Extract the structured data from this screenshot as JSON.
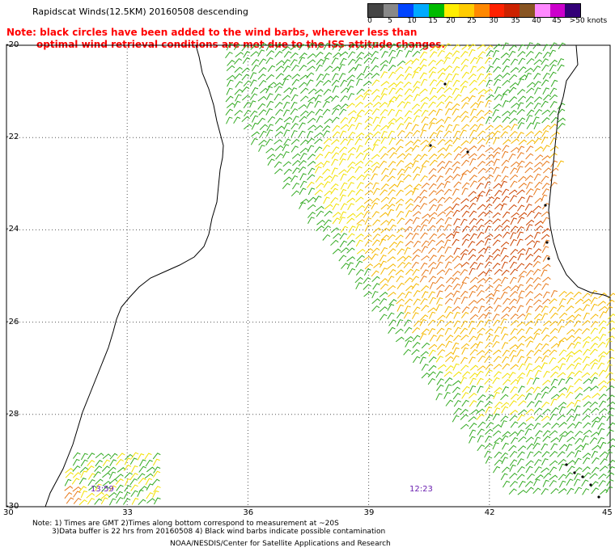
{
  "title": "Rapidscat Winds(12.5KM) 20160508 descending",
  "note": {
    "line1": "Note: black circles have been added to the wind barbs, wherever less than",
    "line2": "optimal wind retrieval conditions are met due to the ISS attitude changes."
  },
  "colorbar": {
    "colors": [
      "#444444",
      "#888888",
      "#0044ff",
      "#00aaff",
      "#00bb00",
      "#ffee00",
      "#ffcc00",
      "#ff8800",
      "#ff2200",
      "#cc2200",
      "#885522",
      "#ff88ff",
      "#cc00cc",
      "#330077"
    ],
    "labels": [
      "0",
      "5",
      "10",
      "15",
      "20",
      "25",
      "30",
      "35",
      "40",
      "45",
      ">50 knots"
    ]
  },
  "axes": {
    "lat_labels": [
      "-20",
      "-22",
      "-24",
      "-26",
      "-28",
      "-30"
    ],
    "lon_labels": [
      "30",
      "33",
      "36",
      "39",
      "42",
      "45"
    ]
  },
  "time_labels": [
    "13:59",
    "12:23"
  ],
  "footnote": {
    "line1": "Note: 1) Times are GMT 2)Times along bottom correspond to measurement at ~20S",
    "line2": "3)Data buffer is 22 hrs from 20160508 4) Black wind barbs indicate possible contamination"
  },
  "credit": "NOAA/NESDIS/Center for Satellite Applications and Research"
}
